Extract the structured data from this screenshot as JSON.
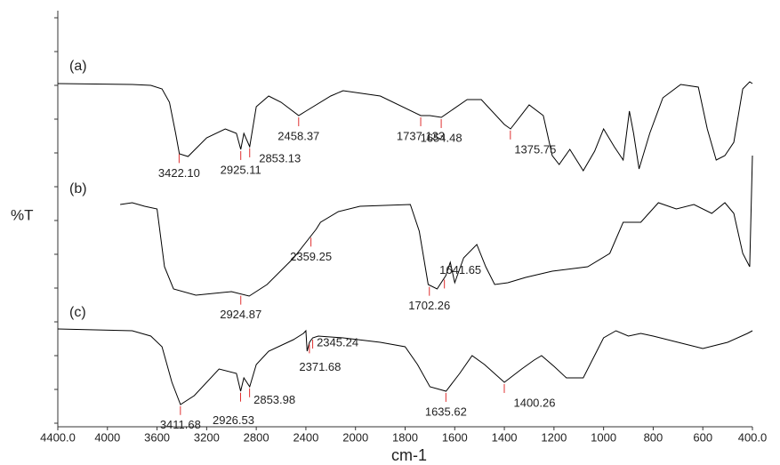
{
  "chart_data": {
    "type": "line",
    "xlabel": "cm-1",
    "ylabel": "%T",
    "xlim": [
      4400,
      400
    ],
    "ylim": [
      0,
      468
    ],
    "xticks": [
      {
        "value": 4400,
        "label": "4400.0"
      },
      4000,
      3600,
      3200,
      2800,
      2400,
      2000,
      1800,
      1600,
      1400,
      1200,
      1000,
      800,
      600,
      {
        "value": 400,
        "label": "400.0"
      }
    ],
    "series": [
      {
        "name": "(a)",
        "color": "#000000",
        "x": [
          4400,
          3800,
          3650,
          3560,
          3500,
          3450,
          3420,
          3350,
          3200,
          3050,
          2960,
          2925,
          2900,
          2853,
          2800,
          2700,
          2600,
          2458,
          2400,
          2200,
          2100,
          1900,
          1737,
          1700,
          1654,
          1550,
          1493,
          1400,
          1375,
          1300,
          1243,
          1207,
          1179,
          1136,
          1082,
          1036,
          1000,
          957,
          921,
          896,
          879,
          857,
          814,
          761,
          689,
          618,
          582,
          546,
          511,
          475,
          439,
          411,
          400
        ],
        "values": [
          386,
          385,
          384,
          380,
          365,
          330,
          307,
          304,
          325,
          335,
          330,
          312,
          330,
          315,
          360,
          372,
          365,
          350,
          355,
          372,
          378,
          372,
          350,
          350,
          348,
          368,
          368,
          340,
          335,
          362,
          350,
          305,
          295,
          312,
          288,
          310,
          335,
          315,
          300,
          355,
          330,
          290,
          330,
          370,
          385,
          382,
          335,
          300,
          305,
          320,
          380,
          388,
          386
        ],
        "peaks": [
          {
            "value": 3422.1,
            "label": "3422.10"
          },
          2925.11,
          2853.13,
          2458.37,
          1737.133,
          1654.48,
          1375.75
        ]
      },
      {
        "name": "(b)",
        "color": "#000000",
        "x": [
          3897,
          3800,
          3700,
          3600,
          3540,
          3467,
          3287,
          3000,
          2857,
          2713,
          2498,
          2318,
          2282,
          2138,
          1982,
          1779,
          1743,
          1707,
          1671,
          1636,
          1618,
          1600,
          1564,
          1511,
          1475,
          1439,
          1386,
          1314,
          1207,
          1064,
          975,
          921,
          850,
          779,
          707,
          636,
          564,
          511,
          475,
          439,
          411,
          400
        ],
        "values": [
          250,
          252,
          248,
          245,
          180,
          155,
          148,
          152,
          147,
          160,
          190,
          222,
          230,
          242,
          248,
          250,
          220,
          160,
          155,
          170,
          185,
          162,
          190,
          205,
          180,
          160,
          162,
          168,
          175,
          180,
          195,
          230,
          230,
          252,
          245,
          250,
          240,
          252,
          240,
          195,
          180,
          305
        ],
        "peaks": [
          2924.87,
          2359.25,
          1702.26,
          1641.65
        ]
      },
      {
        "name": "(c)",
        "color": "#000000",
        "x": [
          4400,
          3800,
          3650,
          3560,
          3480,
          3411,
          3300,
          3100,
          2960,
          2926,
          2900,
          2853,
          2800,
          2700,
          2500,
          2420,
          2400,
          2390,
          2371,
          2345,
          2300,
          2100,
          1900,
          1800,
          1750,
          1700,
          1635,
          1580,
          1530,
          1480,
          1400,
          1330,
          1280,
          1250,
          1200,
          1150,
          1082,
          1000,
          950,
          900,
          850,
          800,
          700,
          600,
          500,
          420,
          400
        ],
        "values": [
          110,
          108,
          102,
          90,
          50,
          25,
          35,
          65,
          60,
          40,
          55,
          45,
          70,
          85,
          98,
          105,
          108,
          85,
          95,
          100,
          102,
          100,
          95,
          90,
          70,
          45,
          40,
          60,
          80,
          70,
          50,
          65,
          75,
          80,
          68,
          55,
          55,
          100,
          108,
          102,
          105,
          102,
          95,
          88,
          95,
          105,
          108
        ],
        "peaks": [
          3411.68,
          2926.53,
          2853.98,
          2371.68,
          2345.24,
          1635.62,
          1400.26
        ]
      }
    ]
  }
}
